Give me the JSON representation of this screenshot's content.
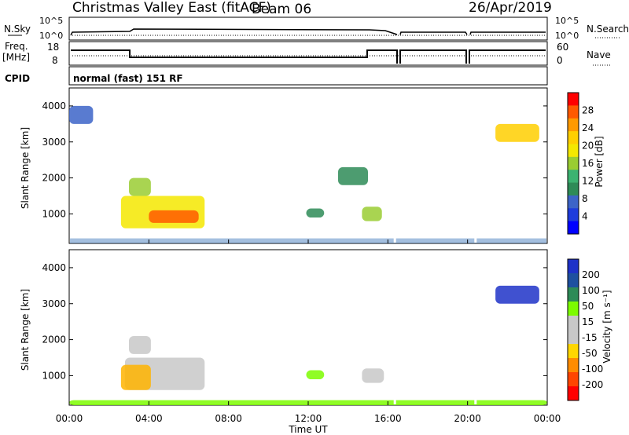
{
  "header": {
    "station": "Christmas Valley East (fitACF)",
    "beam": "Beam 06",
    "date": "26/Apr/2019"
  },
  "nsky_panel": {
    "left_label": "N.Sky",
    "right_label": "N.Search",
    "left_ticks": [
      "10^5",
      "10^0"
    ],
    "right_ticks": [
      "10^5",
      "10^0"
    ]
  },
  "freq_panel": {
    "left_label_1": "Freq.",
    "left_label_2": "[MHz]",
    "right_label": "Nave",
    "left_ticks": [
      "18",
      "8"
    ],
    "right_ticks": [
      "60",
      "0"
    ]
  },
  "cpid": {
    "label": "CPID",
    "program": "normal (fast) 151 RF"
  },
  "power_colorbar": {
    "label": "Power [dB]",
    "ticks": [
      "28",
      "24",
      "20",
      "16",
      "12",
      "8",
      "4"
    ],
    "colors": [
      "#ff0000",
      "#ff5a00",
      "#ff9a00",
      "#ffcf00",
      "#f4e800",
      "#9acd32",
      "#3cb371",
      "#2e8b57",
      "#3c64c8",
      "#1e3cdc",
      "#0000ff"
    ]
  },
  "velocity_colorbar": {
    "label": "Velocity [m s⁻¹]",
    "ticks": [
      "200",
      "100",
      "50",
      "15",
      "-15",
      "-50",
      "-100",
      "-200"
    ],
    "colors": [
      "#1e32c8",
      "#1e50a0",
      "#2e8b57",
      "#7cfc00",
      "#c8c8c8",
      "#c8c8c8",
      "#ffd700",
      "#ff8c00",
      "#ff4500",
      "#ff0000"
    ]
  },
  "chart_data": {
    "type": "heatmap",
    "xlabel": "Time UT",
    "ylabel": "Slant Range [km]",
    "x_ticks": [
      "00:00",
      "04:00",
      "08:00",
      "12:00",
      "16:00",
      "20:00",
      "00:00"
    ],
    "y_ticks": [
      "1000",
      "2000",
      "3000",
      "4000"
    ],
    "xlim_hours": [
      0,
      24
    ],
    "ylim_km": [
      180,
      4500
    ],
    "power_regions": [
      {
        "t0": 2.6,
        "t1": 6.8,
        "r0": 600,
        "r1": 1500,
        "db": 18
      },
      {
        "t0": 4.0,
        "t1": 6.5,
        "r0": 750,
        "r1": 1100,
        "db": 28
      },
      {
        "t0": 3.0,
        "t1": 4.1,
        "r0": 1500,
        "r1": 2000,
        "db": 14
      },
      {
        "t0": 11.9,
        "t1": 12.8,
        "r0": 900,
        "r1": 1150,
        "db": 10
      },
      {
        "t0": 14.7,
        "t1": 15.7,
        "r0": 800,
        "r1": 1200,
        "db": 16
      },
      {
        "t0": 13.5,
        "t1": 15.0,
        "r0": 1800,
        "r1": 2300,
        "db": 8
      },
      {
        "t0": 21.4,
        "t1": 23.6,
        "r0": 3000,
        "r1": 3500,
        "db": 22
      },
      {
        "t0": 0.0,
        "t1": 1.2,
        "r0": 3500,
        "r1": 4000,
        "db": 6
      }
    ],
    "velocity_regions": [
      {
        "t0": 2.8,
        "t1": 6.8,
        "r0": 600,
        "r1": 1500,
        "v": 0
      },
      {
        "t0": 2.6,
        "t1": 4.1,
        "r0": 600,
        "r1": 1300,
        "v": -50
      },
      {
        "t0": 3.0,
        "t1": 4.1,
        "r0": 1600,
        "r1": 2100,
        "v": 0
      },
      {
        "t0": 11.9,
        "t1": 12.8,
        "r0": 900,
        "r1": 1150,
        "v": 40
      },
      {
        "t0": 14.7,
        "t1": 15.8,
        "r0": 800,
        "r1": 1200,
        "v": 0
      },
      {
        "t0": 21.4,
        "t1": 23.6,
        "r0": 3000,
        "r1": 3500,
        "v": 250
      },
      {
        "t0": 0.0,
        "t1": 24.0,
        "r0": 180,
        "r1": 320,
        "v": 40
      }
    ],
    "data_gaps_hours": [
      16.35,
      20.4
    ]
  }
}
